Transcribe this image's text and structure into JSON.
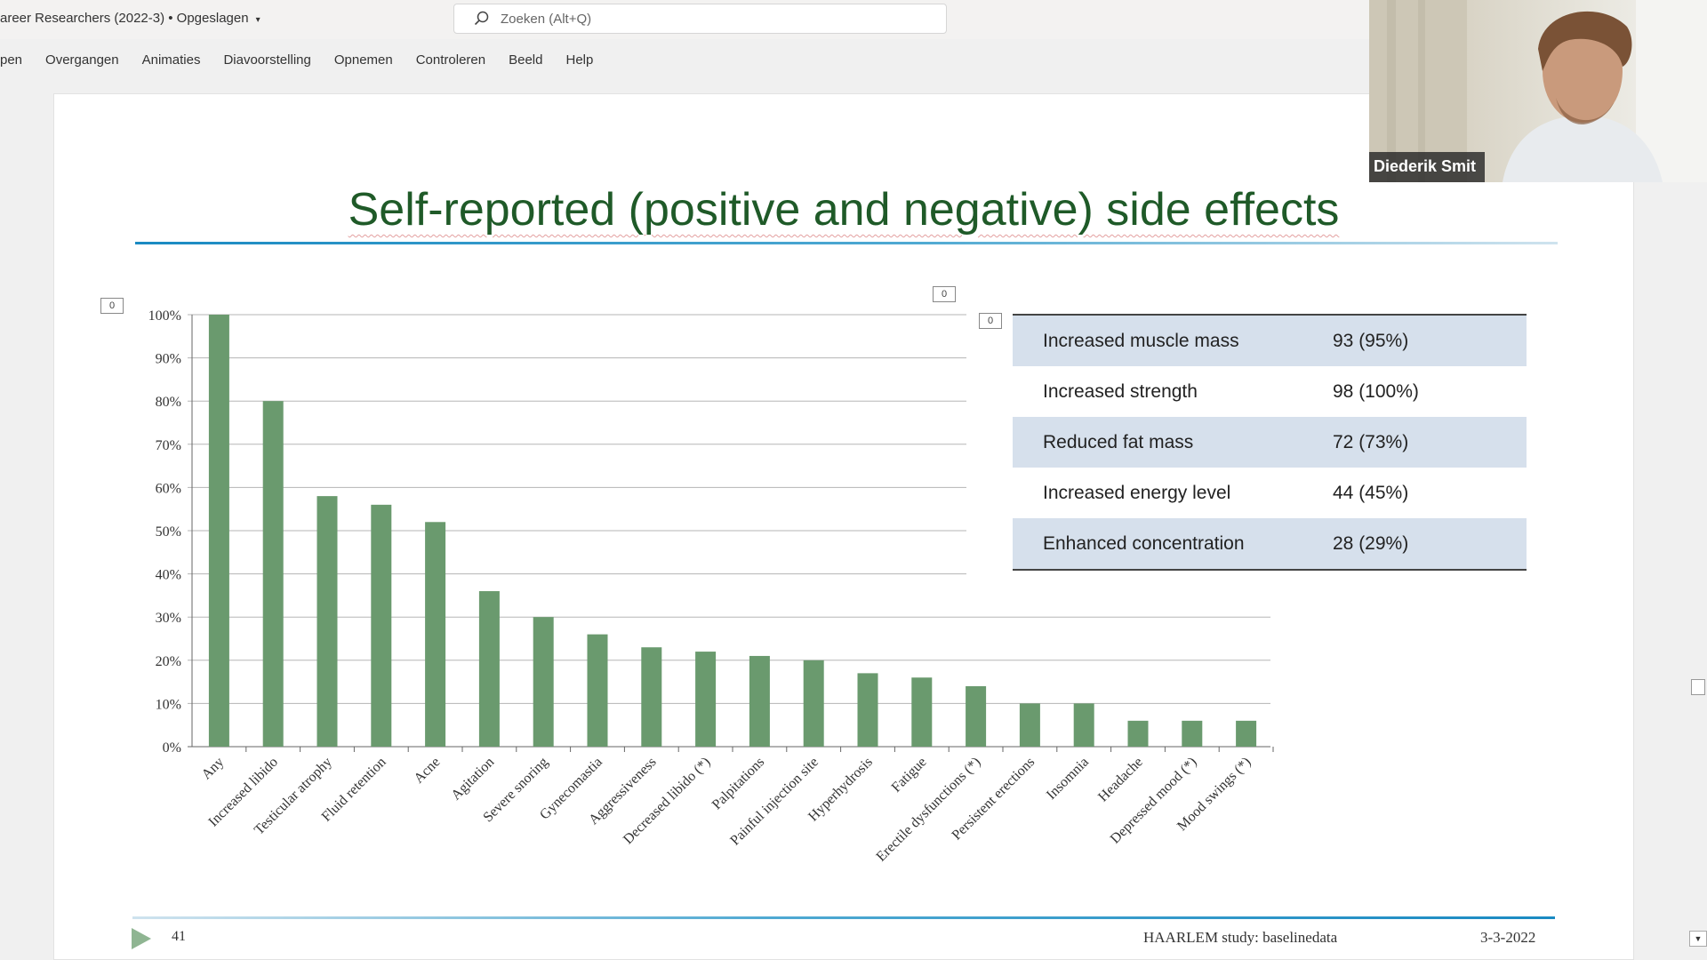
{
  "titlebar": {
    "doc_title": "areer Researchers (2022-3) • Opgeslagen",
    "search_placeholder": "Zoeken (Alt+Q)"
  },
  "ribbon": {
    "tabs": [
      "pen",
      "Overgangen",
      "Animaties",
      "Diavoorstelling",
      "Opnemen",
      "Controleren",
      "Beeld",
      "Help"
    ]
  },
  "slide": {
    "title": "Self-reported (positive and negative) side effects",
    "slide_number": "41",
    "footer_text": "HAARLEM study: baselinedata",
    "footer_date": "3-3-2022",
    "marker_label": "0"
  },
  "chart_data": {
    "type": "bar",
    "categories": [
      "Any",
      "Increased libido",
      "Testicular atrophy",
      "Fluid retention",
      "Acne",
      "Agitation",
      "Severe snoring",
      "Gynecomastia",
      "Aggressiveness",
      "Decreased libido (*)",
      "Palpitations",
      "Painful injection site",
      "Hyperhydrosis",
      "Fatigue",
      "Erectile dysfunctions (*)",
      "Persistent erections",
      "Insomnia",
      "Headache",
      "Depressed mood (*)",
      "Mood swings (*)"
    ],
    "values": [
      100,
      80,
      58,
      56,
      52,
      36,
      30,
      26,
      23,
      22,
      21,
      20,
      17,
      16,
      14,
      10,
      10,
      6,
      6,
      6
    ],
    "y_ticks": [
      "0%",
      "10%",
      "20%",
      "30%",
      "40%",
      "50%",
      "60%",
      "70%",
      "80%",
      "90%",
      "100%"
    ],
    "ylim": [
      0,
      100
    ],
    "bar_color": "#6a9a6e",
    "grid": true
  },
  "table": {
    "rows": [
      {
        "label": "Increased muscle mass",
        "value": "93 (95%)"
      },
      {
        "label": "Increased strength",
        "value": "98 (100%)"
      },
      {
        "label": "Reduced fat mass",
        "value": "72 (73%)"
      },
      {
        "label": "Increased energy level",
        "value": "44 (45%)"
      },
      {
        "label": "Enhanced concentration",
        "value": "28 (29%)"
      }
    ]
  },
  "webcam": {
    "name": "Diederik Smit"
  },
  "colors": {
    "title": "#1f5a28",
    "table_shade": "#d6e0ec",
    "accent_rule": "#1a8ac2"
  }
}
